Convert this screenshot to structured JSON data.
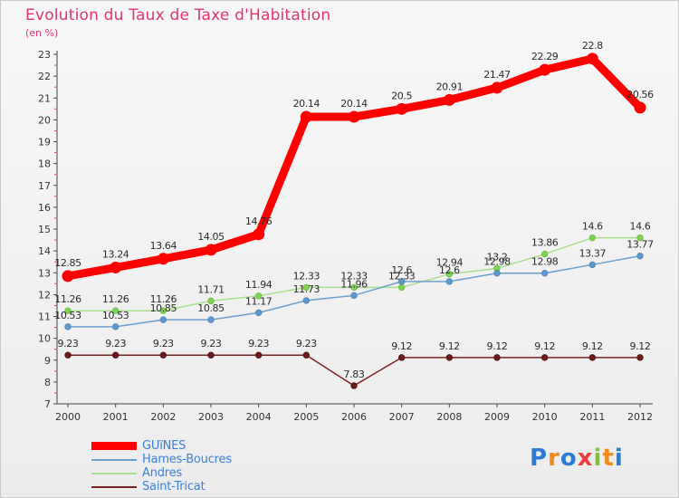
{
  "title": "Evolution du Taux de Taxe d'Habitation",
  "subtitle": "(en %)",
  "logo": {
    "letters": [
      "P",
      "r",
      "o",
      "x",
      "i",
      "t",
      "i"
    ],
    "colors": [
      "#2e7bd4",
      "#f08a1c",
      "#2e7bd4",
      "#e8403c",
      "#7fbf3c",
      "#f08a1c",
      "#2e7bd4"
    ]
  },
  "chart_data": {
    "type": "line",
    "title": "Evolution du Taux de Taxe d'Habitation",
    "ylabel": "(en %)",
    "xlabel": "",
    "ylim": [
      7,
      23
    ],
    "yticks": [
      7,
      8,
      9,
      10,
      11,
      12,
      13,
      14,
      15,
      16,
      17,
      18,
      19,
      20,
      21,
      22,
      23
    ],
    "x": [
      "2000",
      "2001",
      "2002",
      "2003",
      "2004",
      "2005",
      "2006",
      "2007",
      "2008",
      "2009",
      "2010",
      "2011",
      "2012"
    ],
    "grid": false,
    "legend_position": "bottom-left",
    "series": [
      {
        "name": "GUïNES",
        "color": "#ff0000",
        "values": [
          12.85,
          13.24,
          13.64,
          14.05,
          14.76,
          20.14,
          20.14,
          20.5,
          20.91,
          21.47,
          22.29,
          22.8,
          20.56
        ],
        "labels": [
          "12.85",
          "13.24",
          "13.64",
          "14.05",
          "14.76",
          "20.14",
          "20.14",
          "20.5",
          "20.91",
          "21.47",
          "22.29",
          "22.8",
          "20.56"
        ]
      },
      {
        "name": "Hames-Boucres",
        "color": "#6aa0cf",
        "values": [
          10.53,
          10.53,
          10.85,
          10.85,
          11.17,
          11.73,
          11.96,
          12.6,
          12.6,
          12.98,
          12.98,
          13.37,
          13.77
        ],
        "labels": [
          "10.53",
          "10.53",
          "10.85",
          "10.85",
          "11.17",
          "11.73",
          "11.96",
          "12.6",
          "12.6",
          "12.98",
          "12.98",
          "13.37",
          "13.77"
        ]
      },
      {
        "name": "Andres",
        "color": "#a8de8a",
        "values": [
          11.26,
          11.26,
          11.26,
          11.71,
          11.94,
          12.33,
          12.33,
          12.33,
          12.94,
          13.2,
          13.86,
          14.6,
          14.6
        ],
        "labels": [
          "11.26",
          "11.26",
          "11.26",
          "11.71",
          "11.94",
          "12.33",
          "12.33",
          "12.33",
          "12.94",
          "13.2",
          "13.86",
          "14.6",
          "14.6"
        ]
      },
      {
        "name": "Saint-Tricat",
        "color": "#7a2020",
        "values": [
          9.23,
          9.23,
          9.23,
          9.23,
          9.23,
          9.23,
          7.83,
          9.12,
          9.12,
          9.12,
          9.12,
          9.12,
          9.12
        ],
        "labels": [
          "9.23",
          "9.23",
          "9.23",
          "9.23",
          "9.23",
          "9.23",
          "7.83",
          "9.12",
          "9.12",
          "9.12",
          "9.12",
          "9.12",
          "9.12"
        ]
      }
    ]
  }
}
